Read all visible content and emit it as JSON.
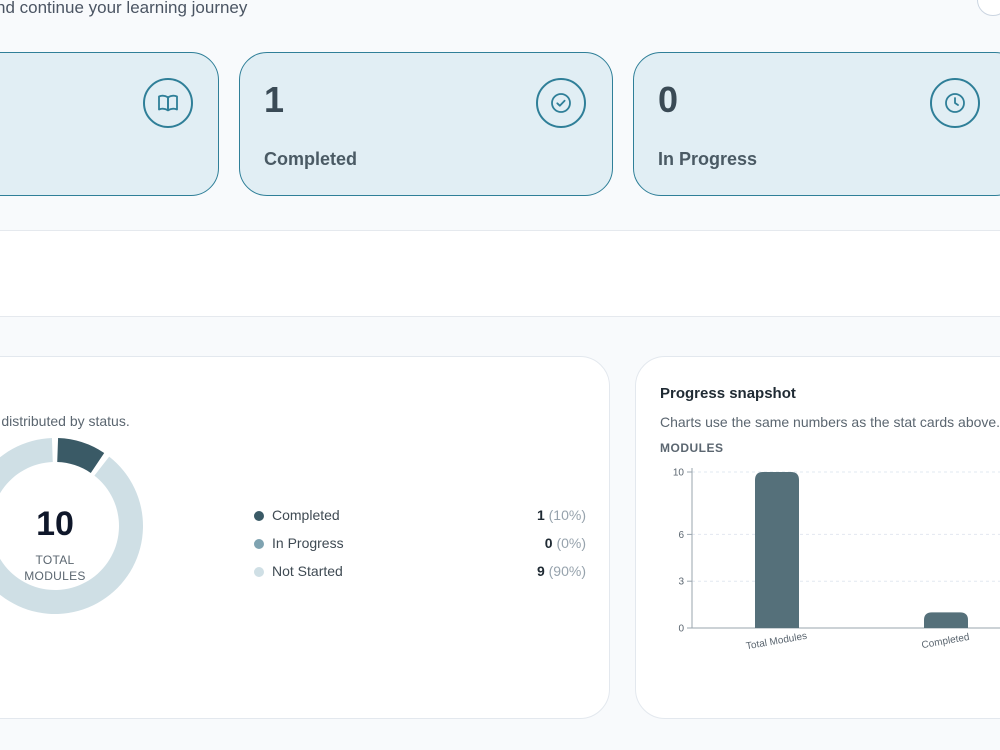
{
  "header": {
    "subtitle": "nd continue your learning journey"
  },
  "stats": {
    "total": {
      "icon": "book-open-icon"
    },
    "completed": {
      "value": "1",
      "label": "Completed",
      "icon": "check-circle-icon"
    },
    "in_progress": {
      "value": "0",
      "label": "In Progress",
      "icon": "clock-icon"
    }
  },
  "status_panel": {
    "description": "re distributed by status.",
    "center_value": "10",
    "center_label_line1": "TOTAL",
    "center_label_line2": "MODULES",
    "legend": [
      {
        "label": "Completed",
        "count": "1",
        "percent": "(10%)",
        "color": "#3a5a66"
      },
      {
        "label": "In Progress",
        "count": "0",
        "percent": "(0%)",
        "color": "#7fa3b1"
      },
      {
        "label": "Not Started",
        "count": "9",
        "percent": "(90%)",
        "color": "#cfdfe5"
      }
    ]
  },
  "snapshot_panel": {
    "title": "Progress snapshot",
    "description": "Charts use the same numbers as the stat cards above.",
    "axis_title": "MODULES"
  },
  "chart_data": [
    {
      "type": "pie",
      "categories": [
        "Completed",
        "In Progress",
        "Not Started"
      ],
      "values": [
        1,
        0,
        9
      ],
      "colors": [
        "#3a5a66",
        "#7fa3b1",
        "#cfdfe5"
      ],
      "donut": true
    },
    {
      "type": "bar",
      "categories": [
        "Total Modules",
        "Completed"
      ],
      "values": [
        10,
        1
      ],
      "yticks": [
        "0",
        "3",
        "6",
        "10"
      ],
      "ylim": [
        0,
        10
      ],
      "ylabel": "MODULES",
      "bar_color": "#55707a",
      "grid": true
    }
  ]
}
